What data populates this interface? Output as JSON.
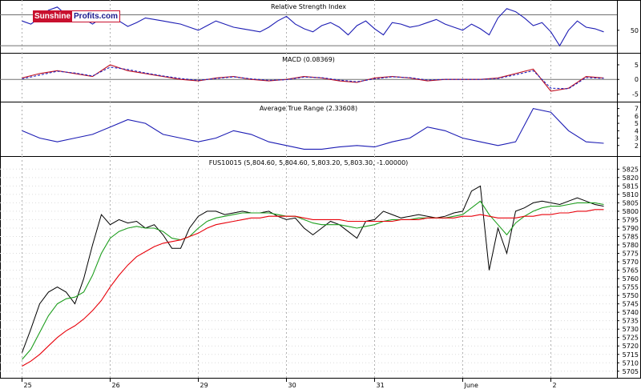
{
  "logo": {
    "part1": "Sunshine",
    "part2": "Profits.com"
  },
  "colors": {
    "price": "#000000",
    "ma_fast": "#1e9e1e",
    "ma_slow": "#e8000a",
    "indicator": "#1c1cb4",
    "signal": "#c01020",
    "macd_dashed": "#2222bb",
    "grid": "#b0b0b0"
  },
  "chart_data": [
    {
      "type": "line",
      "title": "Relative Strength Index",
      "yticks": [
        50
      ],
      "ylim": [
        25,
        85
      ],
      "levels": [
        70,
        30
      ],
      "x": [
        0,
        0.1,
        0.2,
        0.3,
        0.4,
        0.5,
        0.6,
        0.7,
        0.8,
        0.9,
        1.0,
        1.1,
        1.2,
        1.3,
        1.4,
        1.5,
        1.6,
        1.7,
        1.8,
        1.9,
        2.0,
        2.1,
        2.2,
        2.3,
        2.4,
        2.5,
        2.6,
        2.7,
        2.8,
        2.9,
        3.0,
        3.1,
        3.2,
        3.3,
        3.4,
        3.5,
        3.6,
        3.7,
        3.8,
        3.9,
        4.0,
        4.1,
        4.2,
        4.3,
        4.4,
        4.5,
        4.6,
        4.7,
        4.8,
        4.9,
        5.0,
        5.1,
        5.2,
        5.3,
        5.4,
        5.5,
        5.6,
        5.7,
        5.8,
        5.9,
        6.0,
        6.1,
        6.2,
        6.3,
        6.4,
        6.5,
        6.6
      ],
      "series": [
        {
          "values": [
            62,
            58,
            66,
            76,
            80,
            70,
            72,
            65,
            58,
            66,
            70,
            62,
            55,
            60,
            66,
            64,
            62,
            60,
            58,
            54,
            50,
            56,
            62,
            58,
            54,
            52,
            50,
            48,
            54,
            62,
            68,
            58,
            52,
            48,
            56,
            60,
            54,
            44,
            56,
            62,
            52,
            44,
            60,
            58,
            54,
            56,
            60,
            64,
            58,
            54,
            50,
            58,
            52,
            44,
            66,
            78,
            74,
            66,
            56,
            60,
            48,
            30,
            50,
            62,
            54,
            52,
            48
          ]
        }
      ]
    },
    {
      "type": "line",
      "title": "MACD (0.08369)",
      "yticks": [
        5,
        0,
        -5
      ],
      "ylim": [
        -6.5,
        8
      ],
      "x": [
        0,
        0.2,
        0.4,
        0.6,
        0.8,
        1.0,
        1.2,
        1.4,
        1.6,
        1.8,
        2.0,
        2.2,
        2.4,
        2.6,
        2.8,
        3.0,
        3.2,
        3.4,
        3.6,
        3.8,
        4.0,
        4.2,
        4.4,
        4.6,
        4.8,
        5.0,
        5.2,
        5.4,
        5.6,
        5.8,
        6.0,
        6.2,
        6.4,
        6.6
      ],
      "series": [
        {
          "values": [
            0.5,
            2,
            3,
            2,
            1,
            5,
            3,
            2,
            1,
            0,
            -0.5,
            0.5,
            1,
            0,
            -0.5,
            0,
            1,
            0.5,
            -0.5,
            -1,
            0.5,
            1,
            0.5,
            -0.5,
            0,
            0,
            0,
            0.5,
            2,
            3.5,
            -4,
            -3,
            1,
            0.5
          ]
        },
        {
          "values": [
            0.2,
            1.5,
            2.8,
            2.2,
            1.2,
            4.2,
            3.4,
            2.2,
            1.2,
            0.3,
            -0.3,
            0.3,
            0.9,
            0.2,
            -0.3,
            -0.1,
            0.8,
            0.6,
            -0.2,
            -0.8,
            0.2,
            0.9,
            0.6,
            -0.2,
            0,
            0,
            0,
            0.3,
            1.6,
            3,
            -3,
            -3.2,
            0.6,
            0.4
          ]
        }
      ]
    },
    {
      "type": "line",
      "title": "Average True Range (2.33608)",
      "yticks": [
        7,
        6,
        5,
        4,
        3,
        2
      ],
      "ylim": [
        1,
        7.5
      ],
      "x": [
        0,
        0.2,
        0.4,
        0.6,
        0.8,
        1.0,
        1.2,
        1.4,
        1.6,
        1.8,
        2.0,
        2.2,
        2.4,
        2.6,
        2.8,
        3.0,
        3.2,
        3.4,
        3.6,
        3.8,
        4.0,
        4.2,
        4.4,
        4.6,
        4.8,
        5.0,
        5.2,
        5.4,
        5.6,
        5.8,
        6.0,
        6.2,
        6.4,
        6.6
      ],
      "series": [
        {
          "values": [
            4,
            3,
            2.5,
            3,
            3.5,
            4.5,
            5.5,
            5,
            3.5,
            3,
            2.5,
            3,
            4,
            3.5,
            2.5,
            2,
            1.5,
            1.5,
            1.8,
            2,
            1.8,
            2.5,
            3,
            4.5,
            4,
            3,
            2.5,
            2,
            2.5,
            7,
            6.5,
            4,
            2.5,
            2.3
          ]
        }
      ]
    },
    {
      "type": "line",
      "title": "FUS10015 (5,804.60, 5,804.60, 5,803.20, 5,803.30, -1.00000)",
      "yticks": [
        5825,
        5820,
        5815,
        5810,
        5805,
        5800,
        5795,
        5790,
        5785,
        5780,
        5775,
        5770,
        5765,
        5760,
        5755,
        5750,
        5745,
        5740,
        5735,
        5730,
        5725,
        5720,
        5715,
        5710,
        5705
      ],
      "ylim": [
        5703,
        5828
      ],
      "x_categories": [
        "25",
        "26",
        "29",
        "30",
        "31",
        "June",
        "2"
      ],
      "x_tick_positions": [
        0,
        1,
        2,
        3,
        4,
        5,
        6
      ],
      "x": [
        0,
        0.1,
        0.2,
        0.3,
        0.4,
        0.5,
        0.6,
        0.7,
        0.8,
        0.9,
        1.0,
        1.1,
        1.2,
        1.3,
        1.4,
        1.5,
        1.6,
        1.7,
        1.8,
        1.9,
        2.0,
        2.1,
        2.2,
        2.3,
        2.4,
        2.5,
        2.6,
        2.7,
        2.8,
        2.9,
        3.0,
        3.1,
        3.2,
        3.3,
        3.4,
        3.5,
        3.6,
        3.7,
        3.8,
        3.9,
        4.0,
        4.1,
        4.2,
        4.3,
        4.4,
        4.5,
        4.6,
        4.7,
        4.8,
        4.9,
        5.0,
        5.1,
        5.2,
        5.3,
        5.4,
        5.5,
        5.6,
        5.7,
        5.8,
        5.9,
        6.0,
        6.1,
        6.2,
        6.3,
        6.4,
        6.5,
        6.6
      ],
      "series": [
        {
          "values": [
            5716,
            5730,
            5745,
            5752,
            5755,
            5752,
            5745,
            5760,
            5780,
            5798,
            5792,
            5795,
            5793,
            5794,
            5790,
            5792,
            5786,
            5778,
            5778,
            5790,
            5797,
            5800,
            5800,
            5798,
            5799,
            5800,
            5799,
            5799,
            5800,
            5797,
            5795,
            5796,
            5790,
            5786,
            5790,
            5794,
            5792,
            5788,
            5784,
            5794,
            5795,
            5800,
            5798,
            5796,
            5797,
            5798,
            5797,
            5796,
            5797,
            5799,
            5800,
            5812,
            5815,
            5765,
            5790,
            5775,
            5800,
            5802,
            5805,
            5806,
            5805,
            5804,
            5806,
            5808,
            5806,
            5804,
            5803
          ]
        },
        {
          "values": [
            5712,
            5718,
            5728,
            5738,
            5745,
            5748,
            5749,
            5752,
            5762,
            5775,
            5784,
            5788,
            5790,
            5791,
            5790,
            5790,
            5788,
            5784,
            5783,
            5785,
            5790,
            5794,
            5796,
            5797,
            5798,
            5799,
            5799,
            5799,
            5799,
            5798,
            5797,
            5797,
            5795,
            5793,
            5792,
            5792,
            5792,
            5791,
            5790,
            5791,
            5792,
            5794,
            5795,
            5795,
            5795,
            5796,
            5796,
            5796,
            5796,
            5797,
            5798,
            5802,
            5806,
            5798,
            5792,
            5786,
            5793,
            5797,
            5800,
            5802,
            5803,
            5803,
            5804,
            5805,
            5805,
            5805,
            5804
          ]
        },
        {
          "values": [
            5708,
            5711,
            5715,
            5720,
            5725,
            5729,
            5732,
            5736,
            5741,
            5747,
            5755,
            5762,
            5768,
            5773,
            5776,
            5779,
            5781,
            5782,
            5783,
            5785,
            5787,
            5790,
            5792,
            5793,
            5794,
            5795,
            5796,
            5796,
            5797,
            5797,
            5797,
            5797,
            5796,
            5795,
            5795,
            5795,
            5795,
            5794,
            5794,
            5794,
            5794,
            5794,
            5794,
            5795,
            5795,
            5795,
            5796,
            5796,
            5796,
            5796,
            5797,
            5797,
            5798,
            5797,
            5796,
            5796,
            5796,
            5797,
            5797,
            5798,
            5798,
            5799,
            5799,
            5800,
            5800,
            5801,
            5801
          ]
        }
      ]
    }
  ]
}
